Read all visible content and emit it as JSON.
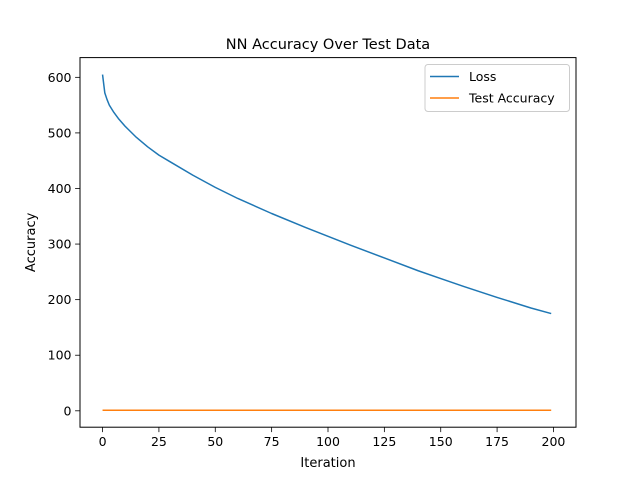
{
  "chart_data": {
    "type": "line",
    "title": "NN Accuracy Over Test Data",
    "xlabel": "Iteration",
    "ylabel": "Accuracy",
    "xlim": [
      -10,
      210
    ],
    "ylim": [
      -29.5,
      635.5
    ],
    "xticks": [
      0,
      25,
      50,
      75,
      100,
      125,
      150,
      175,
      200
    ],
    "yticks": [
      0,
      100,
      200,
      300,
      400,
      500,
      600
    ],
    "grid": false,
    "legend": "top-right",
    "series": [
      {
        "name": "Loss",
        "color": "#1f77b4",
        "x": [
          0,
          1,
          2,
          3,
          5,
          7,
          10,
          15,
          20,
          25,
          30,
          40,
          50,
          60,
          75,
          90,
          100,
          110,
          125,
          140,
          150,
          160,
          175,
          190,
          199
        ],
        "y": [
          605,
          572,
          560,
          550,
          537,
          526,
          512,
          492,
          475,
          460,
          448,
          424,
          402,
          382,
          355,
          330,
          314,
          298,
          275,
          252,
          238,
          224,
          204,
          185,
          175
        ]
      },
      {
        "name": "Test Accuracy",
        "color": "#ff7f0e",
        "x": [
          0,
          199
        ],
        "y": [
          1,
          1
        ]
      }
    ]
  }
}
